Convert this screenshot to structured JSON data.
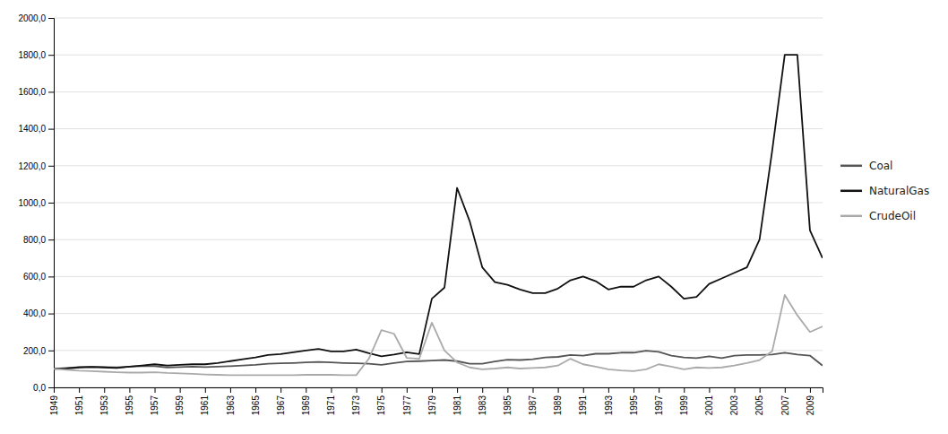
{
  "chart_data": {
    "type": "line",
    "x": [
      1949,
      1950,
      1951,
      1952,
      1953,
      1954,
      1955,
      1956,
      1957,
      1958,
      1959,
      1960,
      1961,
      1962,
      1963,
      1964,
      1965,
      1966,
      1967,
      1968,
      1969,
      1970,
      1971,
      1972,
      1973,
      1974,
      1975,
      1976,
      1977,
      1978,
      1979,
      1980,
      1981,
      1982,
      1983,
      1984,
      1985,
      1986,
      1987,
      1988,
      1989,
      1990,
      1991,
      1992,
      1993,
      1994,
      1995,
      1996,
      1997,
      1998,
      1999,
      2000,
      2001,
      2002,
      2003,
      2004,
      2005,
      2006,
      2007,
      2008,
      2009,
      2010
    ],
    "series": [
      {
        "name": "Coal",
        "color": "#555555",
        "values": [
          100,
          105,
          110,
          112,
          110,
          108,
          112,
          115,
          115,
          108,
          110,
          112,
          110,
          112,
          115,
          118,
          122,
          128,
          130,
          132,
          135,
          138,
          135,
          132,
          130,
          128,
          122,
          132,
          140,
          142,
          145,
          148,
          142,
          128,
          128,
          140,
          150,
          148,
          152,
          162,
          165,
          175,
          172,
          182,
          182,
          188,
          188,
          198,
          192,
          172,
          162,
          158,
          168,
          158,
          172,
          175,
          175,
          178,
          188,
          178,
          172,
          118
        ]
      },
      {
        "name": "NaturalGas",
        "color": "#111111",
        "values": [
          100,
          102,
          108,
          110,
          108,
          105,
          112,
          118,
          125,
          118,
          122,
          125,
          125,
          132,
          142,
          152,
          162,
          175,
          180,
          190,
          200,
          208,
          195,
          195,
          205,
          185,
          168,
          178,
          190,
          180,
          480,
          540,
          1080,
          900,
          650,
          570,
          555,
          530,
          510,
          510,
          535,
          580,
          600,
          575,
          530,
          545,
          545,
          580,
          600,
          545,
          480,
          490,
          560,
          590,
          620,
          650,
          800,
          1280,
          1800,
          1800,
          850,
          700
        ]
      },
      {
        "name": "CrudeOil",
        "color": "#aaaaaa",
        "values": [
          100,
          95,
          90,
          88,
          85,
          82,
          80,
          80,
          82,
          78,
          76,
          73,
          70,
          68,
          66,
          66,
          66,
          66,
          66,
          66,
          68,
          68,
          68,
          66,
          66,
          155,
          310,
          290,
          160,
          155,
          350,
          200,
          135,
          108,
          98,
          102,
          108,
          102,
          105,
          108,
          118,
          155,
          125,
          112,
          98,
          92,
          88,
          98,
          125,
          112,
          98,
          108,
          105,
          108,
          118,
          132,
          148,
          195,
          500,
          390,
          300,
          330
        ]
      }
    ],
    "xlim": [
      1949,
      2010
    ],
    "xticks": [
      1949,
      1951,
      1953,
      1955,
      1957,
      1959,
      1961,
      1963,
      1965,
      1967,
      1969,
      1971,
      1973,
      1975,
      1977,
      1979,
      1981,
      1983,
      1985,
      1987,
      1989,
      1991,
      1993,
      1995,
      1997,
      1999,
      2001,
      2003,
      2005,
      2007,
      2009
    ],
    "ylim": [
      0,
      2000
    ],
    "yticks": [
      {
        "value": 0,
        "label": "0,0"
      },
      {
        "value": 200,
        "label": "200,0"
      },
      {
        "value": 400,
        "label": "400,0"
      },
      {
        "value": 600,
        "label": "600,0"
      },
      {
        "value": 800,
        "label": "800,0"
      },
      {
        "value": 1000,
        "label": "1000,0"
      },
      {
        "value": 1200,
        "label": "1200,0"
      },
      {
        "value": 1400,
        "label": "1400,0"
      },
      {
        "value": 1600,
        "label": "1600,0"
      },
      {
        "value": 1800,
        "label": "1800,0"
      },
      {
        "value": 2000,
        "label": "2000,0"
      }
    ],
    "grid": true,
    "legend": "right"
  }
}
